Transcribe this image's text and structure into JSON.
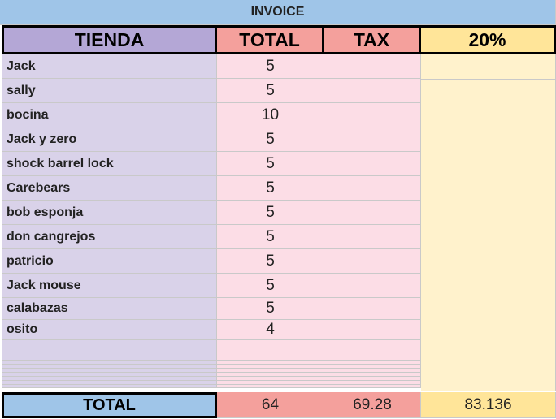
{
  "header": {
    "title": "INVOICE"
  },
  "table": {
    "columns": [
      "TIENDA",
      "TOTAL",
      "TAX",
      "20%"
    ],
    "rows": [
      [
        "Jack",
        5
      ],
      [
        "sally",
        5
      ],
      [
        "bocina",
        10
      ],
      [
        "Jack y zero",
        5
      ],
      [
        "shock barrel lock",
        5
      ],
      [
        "Carebears",
        5
      ],
      [
        "bob esponja",
        5
      ],
      [
        "don cangrejos",
        5
      ],
      [
        "patricio",
        5
      ],
      [
        "Jack mouse",
        5
      ],
      [
        "calabazas",
        5
      ],
      [
        "osito",
        4
      ]
    ],
    "totals": [
      "TOTAL",
      64,
      69.28,
      83.136
    ]
  }
}
